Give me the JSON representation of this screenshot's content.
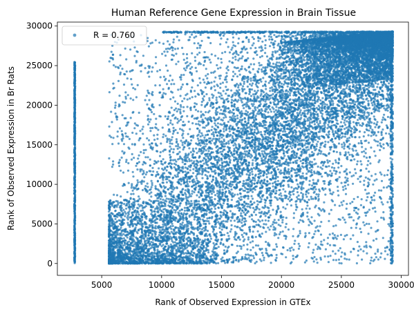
{
  "chart_data": {
    "type": "scatter",
    "title": "Human Reference Gene Expression in Brain Tissue",
    "xlabel": "Rank of Observed Expression in GTEx",
    "ylabel": "Rank of Observed Expression in Br Rats",
    "xlim": [
      1300,
      30600
    ],
    "ylim": [
      -1500,
      30500
    ],
    "xticks": [
      5000,
      10000,
      15000,
      20000,
      25000,
      30000
    ],
    "yticks": [
      0,
      5000,
      10000,
      15000,
      20000,
      25000,
      30000
    ],
    "grid": false,
    "legend": {
      "position": "top-left",
      "entries": [
        "R = 0.760"
      ]
    },
    "series": [
      {
        "name": "R = 0.760",
        "color": "#1f77b4",
        "correlation": 0.76,
        "marker_size_pt": 2,
        "alpha": 0.7,
        "points_summary": [
          {
            "region": "vertical band at zero-expression tie rank",
            "x": 2750,
            "y_range": [
              0,
              25500
            ]
          },
          {
            "region": "dense diagonal",
            "x_range": [
              5500,
              29300
            ],
            "y_range": [
              0,
              29300
            ]
          },
          {
            "region": "saturated top cluster",
            "x_range": [
              20000,
              29300
            ],
            "y_range": [
              24000,
              29300
            ]
          }
        ]
      }
    ]
  }
}
